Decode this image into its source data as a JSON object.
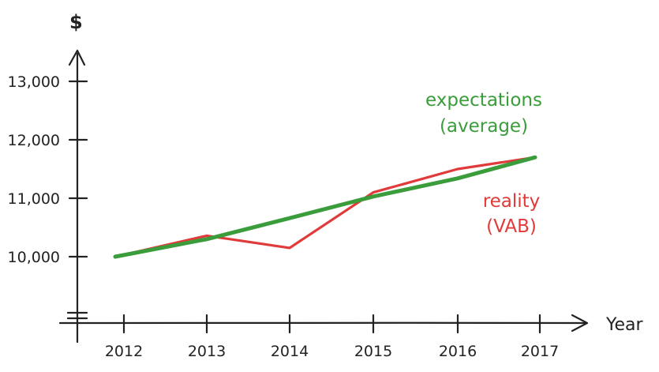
{
  "chart_data": {
    "type": "line",
    "title": "",
    "xlabel": "Year",
    "ylabel": "$",
    "x": [
      "2012",
      "2013",
      "2014",
      "2015",
      "2016",
      "2017"
    ],
    "ylim": [
      9000,
      13500
    ],
    "yticks": [
      10000,
      11000,
      12000,
      13000
    ],
    "ytick_labels": [
      "10,000",
      "11,000",
      "12,000",
      "13,000"
    ],
    "grid": false,
    "series": [
      {
        "name": "reality (VAB)",
        "label_lines": [
          "reality",
          "(VAB)"
        ],
        "color": "#e03a3a",
        "values": [
          10000,
          10360,
          10150,
          11100,
          11500,
          11700
        ]
      },
      {
        "name": "expectations (average)",
        "label_lines": [
          "expectations",
          "(average)"
        ],
        "color": "#3a9c3a",
        "values": [
          10000,
          10300,
          10660,
          11030,
          11340,
          11700
        ]
      }
    ]
  }
}
